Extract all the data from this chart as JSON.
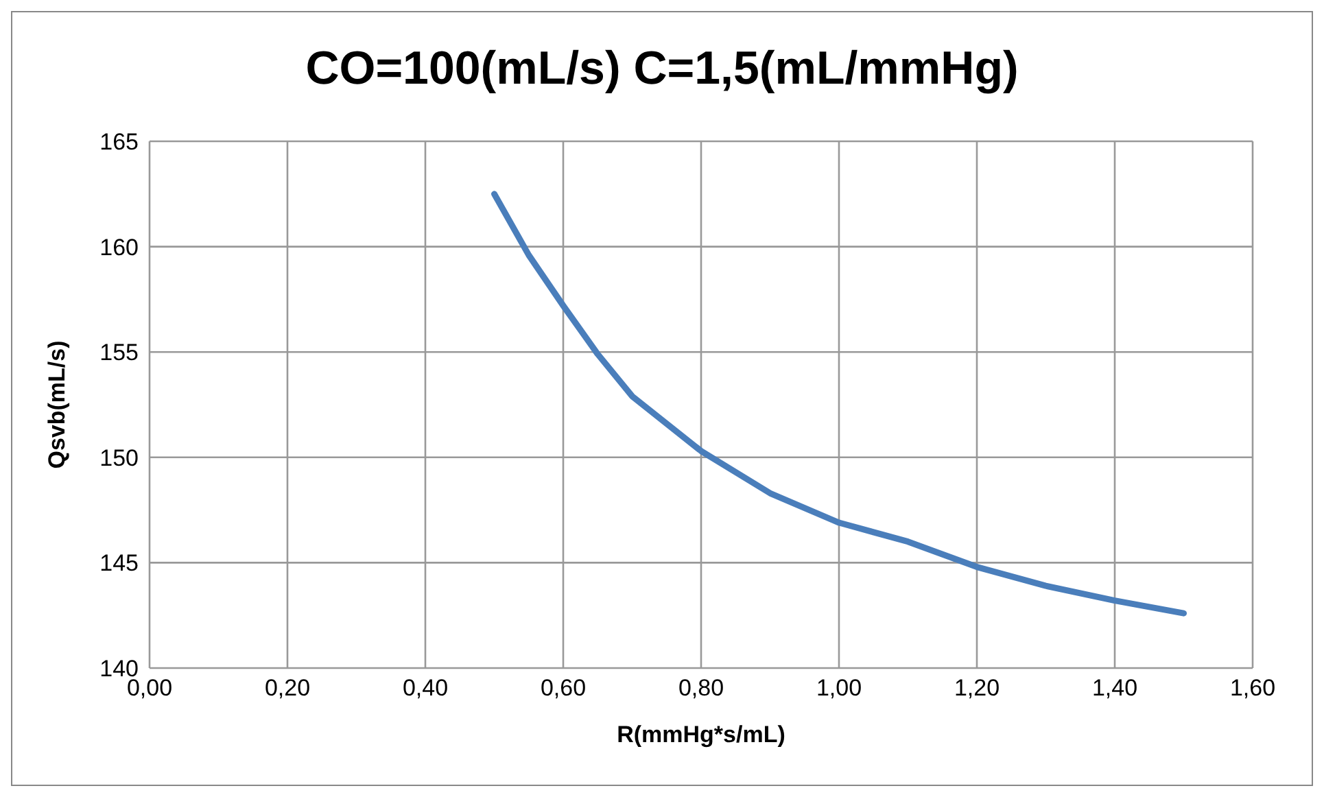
{
  "chart_data": {
    "type": "line",
    "title": "CO=100(mL/s) C=1,5(mL/mmHg)",
    "xlabel": "R(mmHg*s/mL)",
    "ylabel": "Qsvb(mL/s)",
    "x": [
      0.5,
      0.55,
      0.6,
      0.65,
      0.7,
      0.8,
      0.9,
      1.0,
      1.1,
      1.2,
      1.3,
      1.4,
      1.5
    ],
    "series": [
      {
        "color": "#4a7ebb",
        "values": [
          162.5,
          159.6,
          157.2,
          154.9,
          152.9,
          150.3,
          148.3,
          146.9,
          146.0,
          144.8,
          143.9,
          143.2,
          142.6
        ]
      }
    ],
    "xlim": [
      0,
      1.6
    ],
    "xticks": [
      {
        "value": 0,
        "label": "0,00"
      },
      {
        "value": 0.2,
        "label": "0,20"
      },
      {
        "value": 0.4,
        "label": "0,40"
      },
      {
        "value": 0.6,
        "label": "0,60"
      },
      {
        "value": 0.8,
        "label": "0,80"
      },
      {
        "value": 1.0,
        "label": "1,00"
      },
      {
        "value": 1.2,
        "label": "1,20"
      },
      {
        "value": 1.4,
        "label": "1,40"
      },
      {
        "value": 1.6,
        "label": "1,60"
      }
    ],
    "ylim": [
      140,
      165
    ],
    "yticks": [
      140,
      145,
      150,
      155,
      160,
      165
    ],
    "grid": true,
    "marker": "none",
    "line_style": "solid",
    "legend": false
  }
}
